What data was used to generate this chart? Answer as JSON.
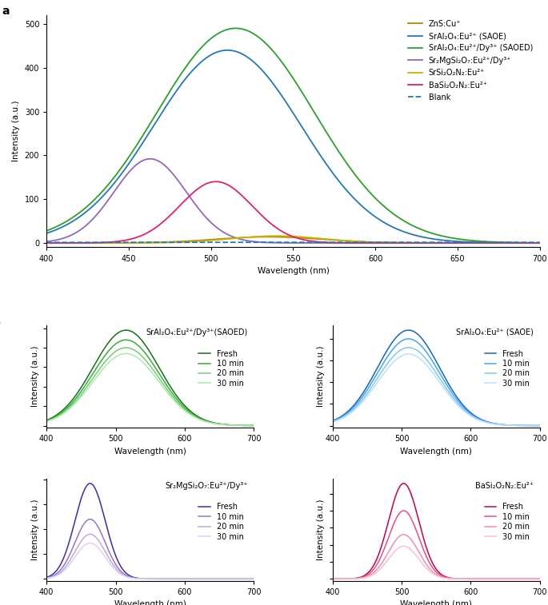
{
  "panel_a": {
    "xlabel": "Wavelength (nm)",
    "ylabel": "Intensity (a.u.)",
    "xlim": [
      400,
      700
    ],
    "ylim": [
      -10,
      520
    ],
    "yticks": [
      0,
      100,
      200,
      300,
      400,
      500
    ],
    "curves": [
      {
        "label": "ZnS:Cu⁺",
        "color": "#b8860b",
        "peak": 535,
        "sigma": 32,
        "amp": 14,
        "style": "solid"
      },
      {
        "label": "SrAl₂O₄:Eu²⁺ (SAOE)",
        "color": "#2378b5",
        "peak": 510,
        "sigma": 45,
        "amp": 440,
        "style": "solid"
      },
      {
        "label": "SrAl₂O₄:Eu²⁺/Dy³⁺ (SAOED)",
        "color": "#2ca02c",
        "peak": 515,
        "sigma": 48,
        "amp": 490,
        "style": "solid"
      },
      {
        "label": "Sr₂MgSi₂O₇:Eu²⁺/Dy³⁺",
        "color": "#9467bd",
        "peak": 463,
        "sigma": 22,
        "amp": 192,
        "style": "solid"
      },
      {
        "label": "SrSi₂O₂N₂:Eu²⁺",
        "color": "#c8b400",
        "peak": 540,
        "sigma": 28,
        "amp": 16,
        "style": "solid"
      },
      {
        "label": "BaSi₂O₂N₂:Eu²⁺",
        "color": "#e0226e",
        "peak": 503,
        "sigma": 22,
        "amp": 140,
        "style": "solid"
      },
      {
        "label": "Blank",
        "color": "#2378b5",
        "peak": 550,
        "sigma": 300,
        "amp": 1.5,
        "style": "dashed"
      }
    ]
  },
  "panel_b": [
    {
      "title": "SrAl₂O₄:Eu²⁺/Dy³⁺(SAOED)",
      "xlabel": "Wavelength (nm)",
      "ylabel": "Intensity (a.u.)",
      "xlim": [
        400,
        700
      ],
      "colors": [
        "#1a6e1a",
        "#3aaa3a",
        "#70d070",
        "#aaeaaa"
      ],
      "labels": [
        "Fresh",
        "10 min",
        "20 min",
        "30 min"
      ],
      "peak": 515,
      "sigma": 48,
      "amps": [
        490,
        440,
        400,
        370
      ]
    },
    {
      "title": "SrAl₂O₄:Eu²⁺ (SAOE)",
      "xlabel": "Wavelength (nm)",
      "ylabel": "Intensity (a.u.)",
      "xlim": [
        400,
        700
      ],
      "colors": [
        "#1565c0",
        "#42a5f5",
        "#7ec8f8",
        "#b8e0ff"
      ],
      "labels": [
        "Fresh",
        "10 min",
        "20 min",
        "30 min"
      ],
      "peak": 510,
      "sigma": 45,
      "amps": [
        440,
        400,
        360,
        330
      ]
    },
    {
      "title": "Sr₂MgSi₂O₇:Eu²⁺/Dy³⁺",
      "xlabel": "Wavelength (nm)",
      "ylabel": "Intensity (a.u.)",
      "xlim": [
        400,
        700
      ],
      "colors": [
        "#3730a8",
        "#9575cd",
        "#c0a8e0",
        "#ddd0f0"
      ],
      "labels": [
        "Fresh",
        "10 min",
        "20 min",
        "30 min"
      ],
      "peak": 463,
      "sigma": 22,
      "amps": [
        192,
        120,
        90,
        72
      ]
    },
    {
      "title": "BaSi₂O₂N₂:Eu²⁺",
      "xlabel": "Wavelength (nm)",
      "ylabel": "Intensity (a.u.)",
      "xlim": [
        400,
        700
      ],
      "colors": [
        "#c40055",
        "#e8507a",
        "#f090a8",
        "#f8c0d0"
      ],
      "labels": [
        "Fresh",
        "10 min",
        "20 min",
        "30 min"
      ],
      "peak": 503,
      "sigma": 22,
      "amps": [
        140,
        100,
        65,
        48
      ]
    }
  ],
  "label_fontsize": 7.5,
  "tick_fontsize": 7,
  "legend_fontsize": 7,
  "panel_label_fontsize": 10,
  "subtitle_fontsize": 7
}
